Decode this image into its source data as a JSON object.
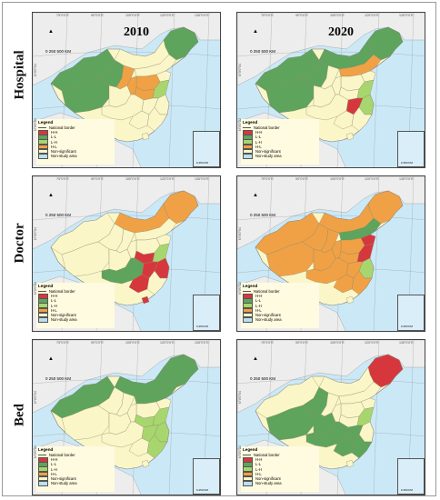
{
  "years": [
    "2010",
    "2020"
  ],
  "rows": [
    "Hospital",
    "Doctor",
    "Bed"
  ],
  "scale": {
    "label": "0  250  500 KM"
  },
  "inset_scale": "0   250 KM",
  "north_label": "N",
  "graticule": {
    "top": [
      "75°0'0\"E",
      "90°0'0\"E",
      "105°0'0\"E",
      "120°0'0\"E",
      "135°0'0\"E"
    ],
    "bottom": [
      "105°0'0\"E",
      "120°0'0\"E"
    ],
    "left": [
      "N\"0'0°04",
      "N\"0'0°22"
    ]
  },
  "legend": {
    "title": "Legend",
    "items": [
      {
        "label": "National border",
        "kind": "line"
      },
      {
        "label": "H-H",
        "color": "#d6373d"
      },
      {
        "label": "L-L",
        "color": "#5ea45d"
      },
      {
        "label": "L-H",
        "color": "#a8d66e"
      },
      {
        "label": "H-L",
        "color": "#f0a145"
      },
      {
        "label": "Non-significant",
        "color": "#fbf6c8"
      },
      {
        "label": "Non-study area",
        "color": "#b8dff2"
      }
    ]
  },
  "colors": {
    "HH": "#d6373d",
    "LL": "#5ea45d",
    "LH": "#a8d66e",
    "HL": "#f0a145",
    "NS": "#fbf6c8",
    "sea": "#cbe8f7",
    "land_other": "#ededed"
  }
}
